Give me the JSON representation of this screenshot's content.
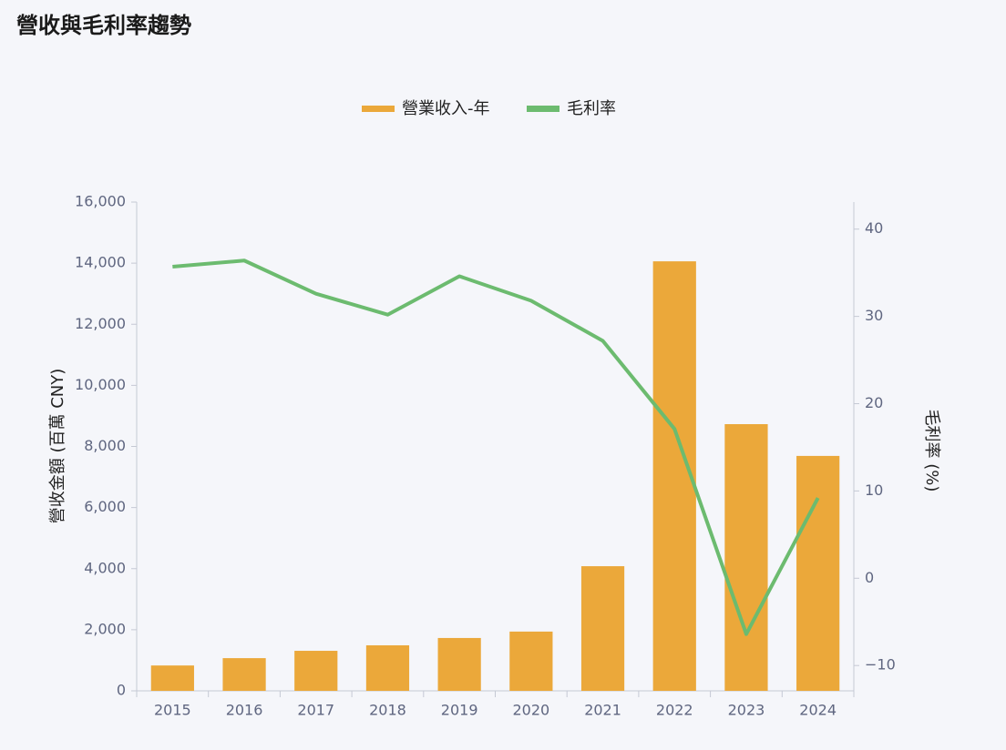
{
  "chart_data": {
    "type": "bar-line",
    "title": "營收與毛利率趨勢",
    "categories": [
      "2015",
      "2016",
      "2017",
      "2018",
      "2019",
      "2020",
      "2021",
      "2022",
      "2023",
      "2024"
    ],
    "series": [
      {
        "name": "營業收入-年",
        "type": "bar",
        "color": "#eba83a",
        "values": [
          830,
          1070,
          1310,
          1490,
          1730,
          1940,
          4080,
          14060,
          8730,
          7690
        ]
      },
      {
        "name": "毛利率",
        "type": "line",
        "axis": "y2",
        "color": "#6cbb6f",
        "values": [
          35.7,
          36.4,
          32.6,
          30.2,
          34.6,
          31.8,
          27.2,
          17.1,
          -6.4,
          9.2
        ]
      }
    ],
    "ylabel": "營收金額 (百萬 CNY)",
    "y2label": "毛利率 (%)",
    "ylim": [
      0,
      16000
    ],
    "yticks": [
      0,
      {
        "value": 2000,
        "label": "2,000"
      },
      {
        "value": 4000,
        "label": "4,000"
      },
      {
        "value": 6000,
        "label": "6,000"
      },
      {
        "value": 8000,
        "label": "8,000"
      },
      {
        "value": 10000,
        "label": "10,000"
      },
      {
        "value": 12000,
        "label": "12,000"
      },
      {
        "value": 14000,
        "label": "14,000"
      },
      {
        "value": 16000,
        "label": "16,000"
      }
    ],
    "y2lim": [
      -12.9,
      43.1
    ],
    "y2ticks": [
      {
        "value": -10,
        "label": "−10"
      },
      0,
      10,
      20,
      30,
      40
    ],
    "legend": "top",
    "grid": false
  }
}
